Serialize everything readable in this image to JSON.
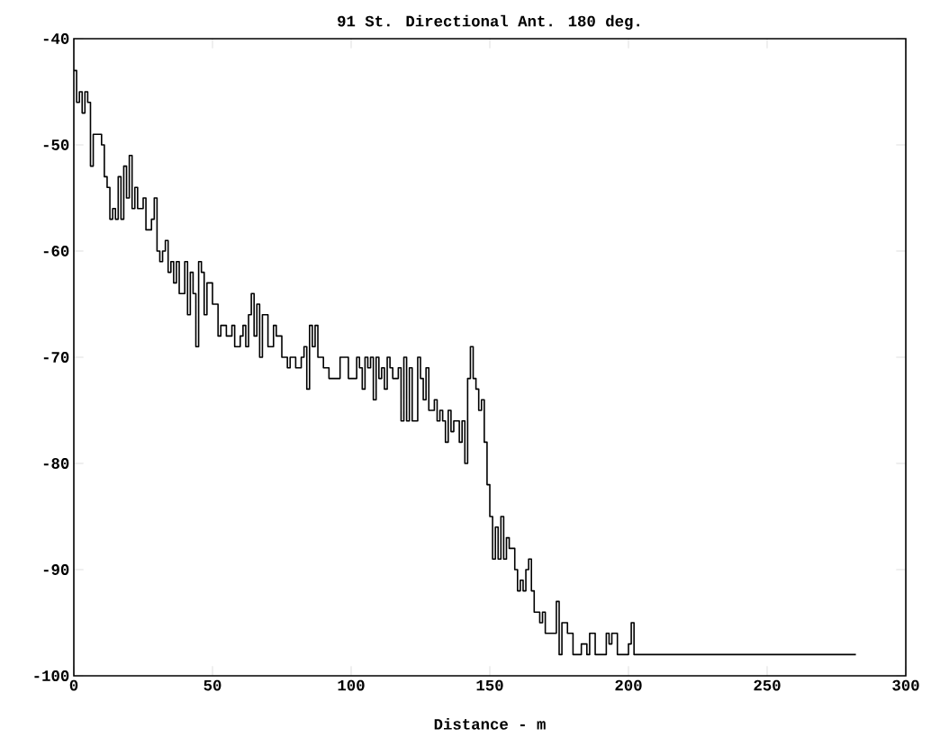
{
  "chart_data": {
    "type": "step",
    "title": "91 St. Directional Ant.  180 deg.",
    "xlabel": "Distance - m",
    "xlim": [
      0,
      300
    ],
    "xticks": [
      0,
      50,
      100,
      150,
      200,
      250,
      300
    ],
    "ylim": [
      -100,
      -40
    ],
    "yticks": [
      -100,
      -90,
      -80,
      -70,
      -60,
      -50,
      -40
    ],
    "line_style": "solid",
    "marker": "none",
    "series": [
      {
        "color": "#000000",
        "x": [
          0,
          1,
          2,
          3,
          4,
          5,
          6,
          7,
          9,
          10,
          11,
          12,
          13,
          14,
          15,
          16,
          17,
          18,
          19,
          20,
          21,
          22,
          23,
          25,
          26,
          28,
          29,
          30,
          31,
          32,
          33,
          34,
          35,
          36,
          37,
          38,
          40,
          41,
          42,
          43,
          44,
          45,
          46,
          47,
          48,
          50,
          52,
          53,
          55,
          57,
          58,
          60,
          61,
          62,
          63,
          64,
          65,
          66,
          67,
          68,
          70,
          72,
          73,
          75,
          77,
          78,
          80,
          82,
          83,
          84,
          85,
          86,
          87,
          88,
          90,
          92,
          94,
          96,
          98,
          99,
          100,
          102,
          103,
          104,
          105,
          106,
          107,
          108,
          109,
          110,
          111,
          112,
          113,
          114,
          115,
          117,
          118,
          119,
          120,
          121,
          122,
          124,
          125,
          126,
          127,
          128,
          130,
          131,
          132,
          133,
          134,
          135,
          136,
          137,
          139,
          140,
          141,
          142,
          143,
          144,
          145,
          146,
          147,
          148,
          149,
          150,
          151,
          152,
          153,
          154,
          155,
          156,
          157,
          159,
          160,
          161,
          162,
          163,
          164,
          165,
          166,
          168,
          169,
          170,
          173,
          174,
          175,
          176,
          178,
          180,
          182,
          183,
          185,
          186,
          188,
          190,
          192,
          193,
          194,
          196,
          199,
          200,
          201,
          202,
          282
        ],
        "values": [
          -43,
          -46,
          -45,
          -47,
          -45,
          -46,
          -52,
          -49,
          -49,
          -50,
          -53,
          -54,
          -57,
          -56,
          -57,
          -53,
          -57,
          -52,
          -55,
          -51,
          -56,
          -54,
          -56,
          -55,
          -58,
          -57,
          -55,
          -60,
          -61,
          -60,
          -59,
          -62,
          -61,
          -63,
          -61,
          -64,
          -61,
          -66,
          -62,
          -64,
          -69,
          -61,
          -62,
          -66,
          -63,
          -65,
          -68,
          -67,
          -68,
          -67,
          -69,
          -68,
          -67,
          -69,
          -66,
          -64,
          -68,
          -65,
          -70,
          -66,
          -69,
          -67,
          -68,
          -70,
          -71,
          -70,
          -71,
          -70,
          -69,
          -73,
          -67,
          -69,
          -67,
          -70,
          -71,
          -72,
          -72,
          -70,
          -70,
          -72,
          -72,
          -70,
          -71,
          -73,
          -70,
          -71,
          -70,
          -74,
          -70,
          -72,
          -71,
          -73,
          -70,
          -71,
          -72,
          -71,
          -76,
          -70,
          -76,
          -71,
          -76,
          -70,
          -72,
          -74,
          -71,
          -75,
          -74,
          -76,
          -75,
          -76,
          -78,
          -75,
          -77,
          -76,
          -78,
          -76,
          -80,
          -72,
          -69,
          -72,
          -73,
          -75,
          -74,
          -78,
          -82,
          -85,
          -89,
          -86,
          -89,
          -85,
          -89,
          -87,
          -88,
          -90,
          -92,
          -91,
          -92,
          -90,
          -89,
          -92,
          -94,
          -95,
          -94,
          -96,
          -96,
          -93,
          -98,
          -95,
          -96,
          -98,
          -98,
          -97,
          -98,
          -96,
          -98,
          -98,
          -96,
          -97,
          -96,
          -98,
          -98,
          -97,
          -95,
          -98,
          -98
        ]
      }
    ]
  }
}
